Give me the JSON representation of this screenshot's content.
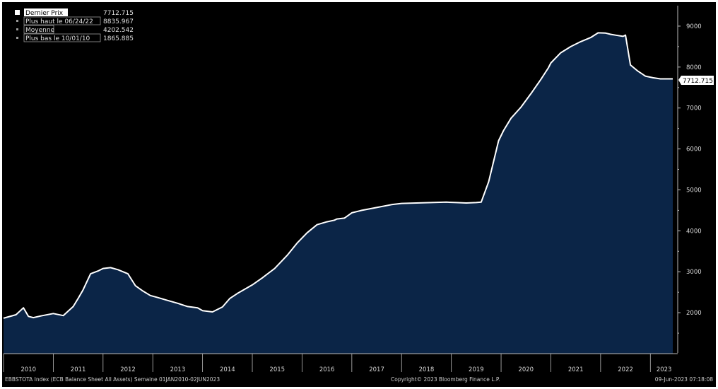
{
  "chart_data": {
    "type": "area",
    "legend": [
      {
        "label": "Dernier Prix",
        "value": "7712.715"
      },
      {
        "label": "Plus haut le 06/24/22",
        "value": "8835.967"
      },
      {
        "label": "Moyenne",
        "value": "4202.542"
      },
      {
        "label": "Plus bas le 10/01/10",
        "value": "1865.885"
      }
    ],
    "last_value_label": "7712.715",
    "ylim": [
      1000,
      9500
    ],
    "yticks": [
      2000,
      3000,
      4000,
      5000,
      6000,
      7000,
      8000,
      9000
    ],
    "xlim": [
      2010.0,
      2023.55
    ],
    "xtick_labels": [
      "2010",
      "2011",
      "2012",
      "2013",
      "2014",
      "2015",
      "2016",
      "2017",
      "2018",
      "2019",
      "2020",
      "2021",
      "2022",
      "2023"
    ],
    "grid": false,
    "x": [
      2010.0,
      2010.25,
      2010.4,
      2010.5,
      2010.6,
      2010.75,
      2011.0,
      2011.2,
      2011.4,
      2011.5,
      2011.6,
      2011.75,
      2011.9,
      2012.0,
      2012.15,
      2012.3,
      2012.5,
      2012.65,
      2012.8,
      2012.95,
      2013.1,
      2013.3,
      2013.5,
      2013.7,
      2013.9,
      2014.0,
      2014.2,
      2014.4,
      2014.55,
      2014.7,
      2014.8,
      2015.0,
      2015.2,
      2015.45,
      2015.7,
      2015.9,
      2016.1,
      2016.3,
      2016.5,
      2016.65,
      2016.7,
      2016.85,
      2017.0,
      2017.2,
      2017.5,
      2017.8,
      2018.0,
      2018.3,
      2018.6,
      2018.9,
      2019.1,
      2019.3,
      2019.5,
      2019.6,
      2019.75,
      2019.85,
      2019.95,
      2020.05,
      2020.2,
      2020.4,
      2020.6,
      2020.8,
      2020.95,
      2021.0,
      2021.2,
      2021.4,
      2021.6,
      2021.8,
      2021.95,
      2022.1,
      2022.2,
      2022.3,
      2022.45,
      2022.5,
      2022.6,
      2022.75,
      2022.9,
      2023.05,
      2023.2,
      2023.35,
      2023.45
    ],
    "values": [
      1866,
      1950,
      2120,
      1910,
      1880,
      1920,
      1980,
      1930,
      2150,
      2350,
      2560,
      2950,
      3020,
      3080,
      3100,
      3050,
      2950,
      2660,
      2530,
      2420,
      2370,
      2300,
      2230,
      2150,
      2120,
      2050,
      2020,
      2140,
      2350,
      2470,
      2540,
      2680,
      2850,
      3080,
      3400,
      3700,
      3950,
      4150,
      4220,
      4260,
      4290,
      4310,
      4440,
      4500,
      4570,
      4640,
      4670,
      4680,
      4690,
      4700,
      4690,
      4680,
      4690,
      4700,
      5200,
      5700,
      6200,
      6450,
      6750,
      7020,
      7350,
      7700,
      7980,
      8100,
      8350,
      8500,
      8620,
      8720,
      8836,
      8830,
      8800,
      8780,
      8750,
      8780,
      8050,
      7900,
      7780,
      7740,
      7712,
      7712,
      7712
    ]
  },
  "footer": {
    "left": "EBBSTOTA Index (ECB Balance Sheet All Assets)  Semaine 01JAN2010-02JUN2023",
    "center": "Copyright© 2023 Bloomberg Finance L.P.",
    "right": "09-Jun-2023 07:18:08"
  },
  "colors": {
    "background": "#000000",
    "area_fill": "#0b2547",
    "line": "#ffffff",
    "axis": "#bdbdbd",
    "text": "#d8d8d8"
  }
}
